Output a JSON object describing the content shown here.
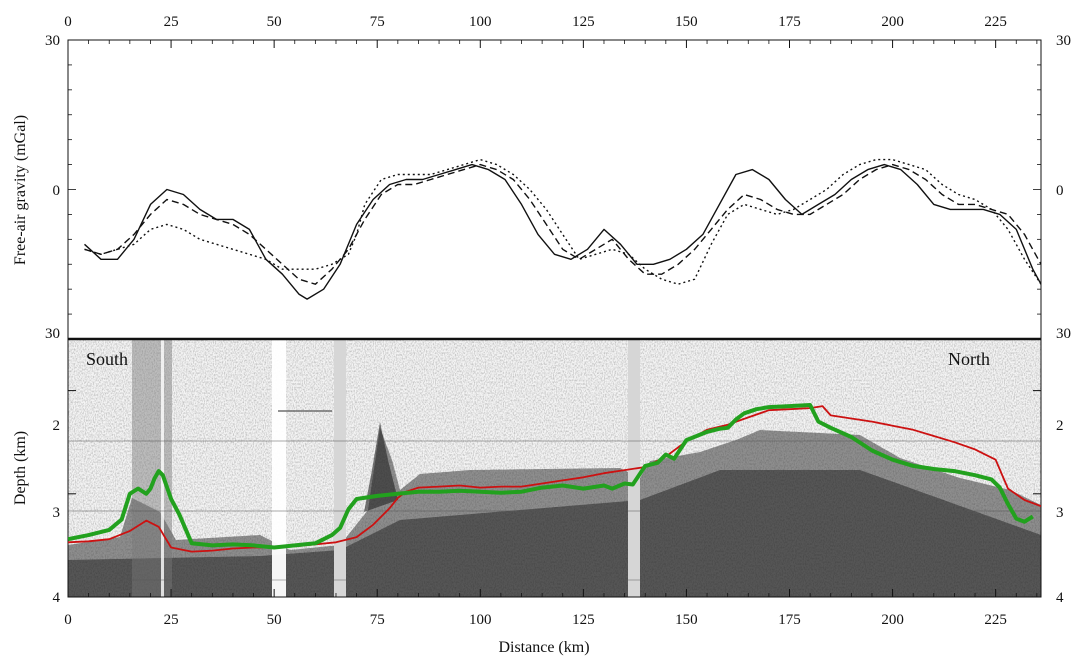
{
  "chart_data": [
    {
      "type": "line",
      "title": "",
      "xlabel": "",
      "ylabel": "Free-air gravity (mGal)",
      "xlim": [
        0,
        236
      ],
      "ylim": [
        -30,
        30
      ],
      "x_ticks": [
        "0",
        "25",
        "50",
        "75",
        "100",
        "125",
        "150",
        "175",
        "200",
        "225"
      ],
      "y_tick_labels": {
        "top": "30",
        "middle": "0",
        "bottom": "30"
      },
      "grid": false,
      "series": [
        {
          "style": "solid",
          "color": "#111111",
          "x": [
            4,
            8,
            12,
            16,
            20,
            24,
            28,
            32,
            36,
            40,
            44,
            48,
            52,
            56,
            58,
            62,
            66,
            70,
            74,
            78,
            82,
            86,
            90,
            94,
            98,
            102,
            106,
            110,
            114,
            118,
            122,
            126,
            130,
            134,
            138,
            142,
            146,
            150,
            154,
            158,
            162,
            166,
            170,
            174,
            178,
            182,
            186,
            190,
            194,
            198,
            202,
            206,
            210,
            214,
            218,
            222,
            226,
            230,
            234,
            236
          ],
          "y": [
            -11,
            -14,
            -14,
            -10,
            -3,
            0,
            -1,
            -4,
            -6,
            -6,
            -8,
            -14,
            -17,
            -21,
            -22,
            -20,
            -15,
            -7,
            -2,
            1,
            2,
            2,
            3,
            4,
            5,
            4,
            2,
            -3,
            -9,
            -13,
            -14,
            -12,
            -8,
            -11,
            -15,
            -15,
            -14,
            -12,
            -9,
            -3,
            3,
            4,
            2,
            -2,
            -5,
            -3,
            -1,
            2,
            4,
            5,
            4,
            1,
            -3,
            -4,
            -4,
            -4,
            -5,
            -8,
            -16,
            -19
          ]
        },
        {
          "style": "dashed",
          "color": "#111111",
          "x": [
            4,
            8,
            12,
            16,
            20,
            24,
            28,
            32,
            36,
            40,
            44,
            48,
            52,
            56,
            60,
            64,
            68,
            72,
            76,
            80,
            84,
            88,
            92,
            96,
            100,
            104,
            108,
            112,
            116,
            120,
            124,
            128,
            132,
            136,
            140,
            144,
            148,
            152,
            156,
            160,
            164,
            168,
            172,
            176,
            180,
            184,
            188,
            192,
            196,
            200,
            204,
            208,
            212,
            216,
            220,
            224,
            228,
            232,
            236
          ],
          "y": [
            -12,
            -13,
            -12,
            -9,
            -5,
            -2,
            -3,
            -5,
            -6,
            -7,
            -9,
            -12,
            -15,
            -18,
            -19,
            -16,
            -12,
            -6,
            -1,
            1,
            1,
            2,
            3,
            4,
            5,
            4,
            2,
            -2,
            -7,
            -12,
            -14,
            -12,
            -10,
            -14,
            -17,
            -17,
            -15,
            -12,
            -8,
            -4,
            -1,
            -2,
            -4,
            -5,
            -5,
            -3,
            -1,
            2,
            4,
            5,
            4,
            2,
            -1,
            -3,
            -3,
            -4,
            -5,
            -9,
            -15
          ]
        },
        {
          "style": "dotted",
          "color": "#111111",
          "x": [
            4,
            8,
            12,
            16,
            20,
            24,
            28,
            32,
            36,
            40,
            44,
            48,
            52,
            56,
            60,
            64,
            68,
            70,
            72,
            76,
            80,
            84,
            88,
            92,
            96,
            100,
            104,
            108,
            112,
            116,
            120,
            124,
            128,
            132,
            136,
            140,
            144,
            148,
            152,
            156,
            160,
            164,
            168,
            172,
            176,
            180,
            184,
            188,
            192,
            196,
            200,
            204,
            208,
            212,
            216,
            220,
            224,
            228,
            232,
            236
          ],
          "y": [
            -12,
            -13,
            -12,
            -11,
            -8,
            -7,
            -8,
            -10,
            -11,
            -12,
            -13,
            -14,
            -16,
            -16,
            -16,
            -15,
            -13,
            -9,
            -3,
            2,
            3,
            3,
            3,
            4,
            5,
            6,
            5,
            3,
            0,
            -4,
            -9,
            -14,
            -13,
            -12,
            -13,
            -16,
            -18,
            -19,
            -18,
            -11,
            -5,
            -3,
            -4,
            -5,
            -4,
            -2,
            0,
            3,
            5,
            6,
            6,
            5,
            4,
            1,
            -1,
            -2,
            -4,
            -8,
            -14,
            -19
          ]
        }
      ]
    },
    {
      "type": "line",
      "title": "",
      "xlabel": "Distance (km)",
      "ylabel": "Depth (km)",
      "xlim": [
        0,
        236
      ],
      "ylim": [
        4,
        1.5
      ],
      "x_ticks": [
        "0",
        "25",
        "50",
        "75",
        "100",
        "125",
        "150",
        "175",
        "200",
        "225"
      ],
      "y_ticks": [
        "2",
        "3",
        "4"
      ],
      "y_tick_values": [
        2,
        3,
        4
      ],
      "grid": false,
      "annotations": [
        "South",
        "North"
      ],
      "series": [
        {
          "color": "#cc1111",
          "x": [
            0,
            5,
            10,
            15,
            19,
            22,
            25,
            30,
            35,
            40,
            45,
            50,
            55,
            60,
            65,
            70,
            74,
            78,
            80,
            82,
            85,
            90,
            95,
            100,
            105,
            110,
            115,
            120,
            125,
            130,
            135,
            140,
            145,
            150,
            155,
            160,
            165,
            170,
            175,
            180,
            183,
            185,
            190,
            195,
            200,
            205,
            210,
            215,
            220,
            225,
            228,
            232,
            236
          ],
          "y": [
            3.47,
            3.46,
            3.44,
            3.36,
            3.26,
            3.32,
            3.52,
            3.56,
            3.55,
            3.53,
            3.52,
            3.52,
            3.51,
            3.49,
            3.47,
            3.42,
            3.3,
            3.14,
            3.04,
            2.98,
            2.94,
            2.93,
            2.92,
            2.94,
            2.93,
            2.93,
            2.9,
            2.87,
            2.84,
            2.8,
            2.77,
            2.74,
            2.64,
            2.49,
            2.38,
            2.33,
            2.26,
            2.19,
            2.18,
            2.17,
            2.15,
            2.24,
            2.27,
            2.3,
            2.34,
            2.38,
            2.44,
            2.5,
            2.57,
            2.67,
            2.95,
            3.06,
            3.12
          ]
        },
        {
          "color": "#22a11e",
          "x": [
            0,
            5,
            10,
            13,
            15,
            17,
            19,
            20,
            21,
            22,
            23,
            25,
            27,
            30,
            35,
            40,
            45,
            50,
            55,
            60,
            64,
            66,
            68,
            70,
            75,
            80,
            85,
            90,
            95,
            100,
            105,
            110,
            115,
            120,
            125,
            130,
            132,
            135,
            137,
            140,
            143,
            145,
            147,
            150,
            155,
            158,
            160,
            162,
            164,
            167,
            170,
            175,
            180,
            182,
            185,
            190,
            195,
            200,
            205,
            210,
            215,
            220,
            224,
            226,
            228,
            230,
            232,
            234
          ],
          "y": [
            3.44,
            3.4,
            3.35,
            3.25,
            3.0,
            2.95,
            3.0,
            2.95,
            2.85,
            2.78,
            2.82,
            3.05,
            3.2,
            3.48,
            3.5,
            3.49,
            3.5,
            3.52,
            3.5,
            3.48,
            3.4,
            3.33,
            3.15,
            3.05,
            3.02,
            3.0,
            2.98,
            2.98,
            2.97,
            2.98,
            2.99,
            2.98,
            2.94,
            2.92,
            2.95,
            2.92,
            2.95,
            2.9,
            2.91,
            2.73,
            2.7,
            2.62,
            2.66,
            2.48,
            2.4,
            2.37,
            2.36,
            2.28,
            2.22,
            2.18,
            2.16,
            2.15,
            2.14,
            2.3,
            2.36,
            2.45,
            2.58,
            2.67,
            2.73,
            2.76,
            2.78,
            2.82,
            2.86,
            2.94,
            3.1,
            3.24,
            3.27,
            3.22
          ]
        }
      ]
    }
  ]
}
